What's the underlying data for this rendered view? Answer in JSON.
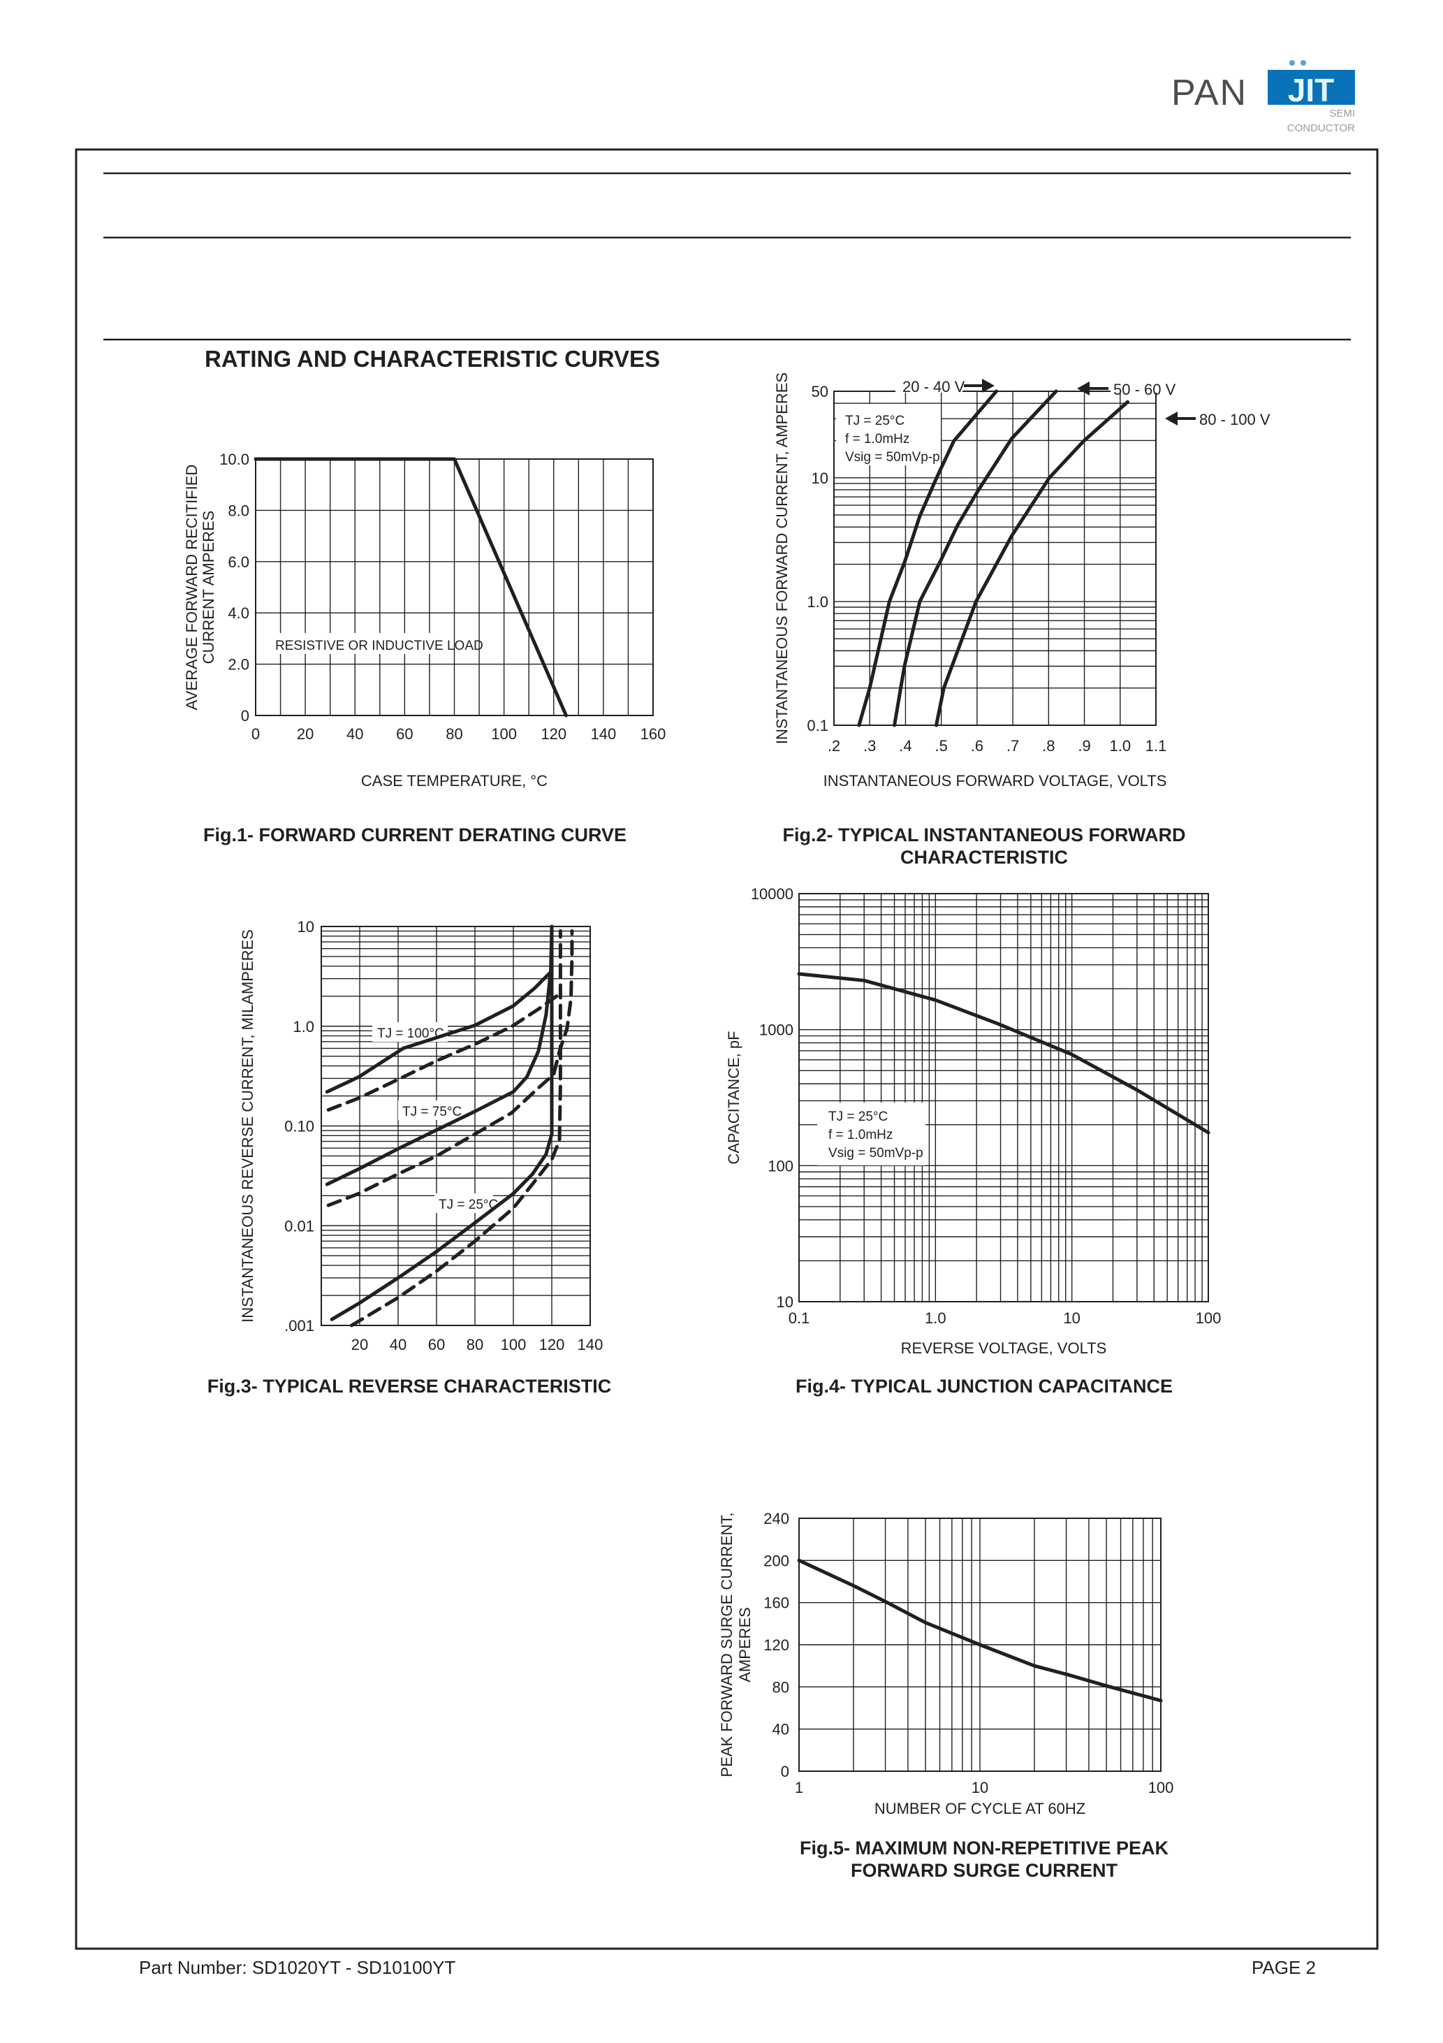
{
  "logo": {
    "brand_left": "PAN",
    "brand_right": "JIT",
    "sub1": "SEMI",
    "sub2": "CONDUCTOR",
    "colors": {
      "gray": "#4d4d4f",
      "blue": "#0a72b8"
    }
  },
  "page": {
    "section_title": "RATING AND CHARACTERISTIC CURVES"
  },
  "footer": {
    "part_number": "Part Number: SD1020YT - SD10100YT",
    "page": "PAGE  2"
  },
  "chart_data": [
    {
      "type": "line",
      "caption": [
        "Fig.1- FORWARD CURRENT DERATING CURVE"
      ],
      "xlabel": [
        "CASE TEMPERATURE, °C"
      ],
      "ylabel": [
        "AVERAGE FORWARD RECITIFIED",
        "CURRENT AMPERES"
      ],
      "xscale": "linear",
      "yscale": "linear",
      "xlim": [
        0,
        160
      ],
      "ylim": [
        0,
        10
      ],
      "grid": true,
      "xticks": [
        {
          "v": 0,
          "label": "0"
        },
        {
          "v": 20,
          "label": "20"
        },
        {
          "v": 40,
          "label": "40"
        },
        {
          "v": 60,
          "label": "60"
        },
        {
          "v": 80,
          "label": "80"
        },
        {
          "v": 100,
          "label": "100"
        },
        {
          "v": 120,
          "label": "120"
        },
        {
          "v": 140,
          "label": "140"
        },
        {
          "v": 160,
          "label": "160"
        }
      ],
      "yticks": [
        {
          "v": 0,
          "label": "0"
        },
        {
          "v": 2,
          "label": "2.0"
        },
        {
          "v": 4,
          "label": "4.0"
        },
        {
          "v": 6,
          "label": "6.0"
        },
        {
          "v": 8,
          "label": "8.0"
        },
        {
          "v": 10,
          "label": "10.0"
        }
      ],
      "series": [
        {
          "style": "solid",
          "points": [
            [
              0,
              10
            ],
            [
              80,
              10
            ],
            [
              125,
              0
            ]
          ]
        }
      ],
      "annotations": [
        "RESISTIVE OR INDUCTIVE LOAD"
      ]
    },
    {
      "type": "line",
      "caption": [
        "Fig.2- TYPICAL INSTANTANEOUS FORWARD",
        "CHARACTERISTIC"
      ],
      "xlabel": [
        "INSTANTANEOUS FORWARD VOLTAGE, VOLTS"
      ],
      "ylabel": [
        "INSTANTANEOUS FORWARD CURRENT, AMPERES"
      ],
      "xscale": "linear",
      "yscale": "log",
      "xlim": [
        0.2,
        1.1
      ],
      "ylim": [
        0.1,
        50
      ],
      "grid": true,
      "xticks": [
        {
          "v": 0.2,
          "label": ".2"
        },
        {
          "v": 0.3,
          "label": ".3"
        },
        {
          "v": 0.4,
          "label": ".4"
        },
        {
          "v": 0.5,
          "label": ".5"
        },
        {
          "v": 0.6,
          "label": ".6"
        },
        {
          "v": 0.7,
          "label": ".7"
        },
        {
          "v": 0.8,
          "label": ".8"
        },
        {
          "v": 0.9,
          "label": ".9"
        },
        {
          "v": 1.0,
          "label": "1.0"
        },
        {
          "v": 1.1,
          "label": "1.1"
        }
      ],
      "yticks": [
        {
          "v": 0.1,
          "label": "0.1"
        },
        {
          "v": 1,
          "label": "1.0"
        },
        {
          "v": 10,
          "label": "10"
        },
        {
          "v": 50,
          "label": "50"
        }
      ],
      "series": [
        {
          "name": "20 - 40 V",
          "style": "solid",
          "points": [
            [
              0.27,
              0.1
            ],
            [
              0.3,
              0.2
            ],
            [
              0.355,
              1.0
            ],
            [
              0.398,
              2.1
            ],
            [
              0.44,
              4.9
            ],
            [
              0.487,
              10
            ],
            [
              0.535,
              19.8
            ],
            [
              0.654,
              50
            ]
          ]
        },
        {
          "name": "50 - 60 V",
          "style": "solid",
          "points": [
            [
              0.369,
              0.1
            ],
            [
              0.397,
              0.3
            ],
            [
              0.44,
              1.0
            ],
            [
              0.497,
              2.1
            ],
            [
              0.545,
              4.1
            ],
            [
              0.602,
              7.8
            ],
            [
              0.697,
              20.8
            ],
            [
              0.821,
              50
            ]
          ]
        },
        {
          "name": "80 - 100 V",
          "style": "solid",
          "points": [
            [
              0.486,
              0.1
            ],
            [
              0.507,
              0.2
            ],
            [
              0.597,
              1.0
            ],
            [
              0.697,
              3.4
            ],
            [
              0.802,
              10
            ],
            [
              0.898,
              19.8
            ],
            [
              1.021,
              41
            ]
          ]
        }
      ],
      "annotations": [
        "TJ = 25°C",
        "f = 1.0mHz",
        "Vsig = 50mVp-p"
      ]
    },
    {
      "type": "line",
      "caption": [
        "Fig.3- TYPICAL REVERSE CHARACTERISTIC"
      ],
      "xlabel": [],
      "ylabel": [
        "INSTANTANEOUS REVERSE CURRENT, MILAMPERES"
      ],
      "xscale": "linear",
      "yscale": "log",
      "xlim": [
        0,
        140
      ],
      "ylim": [
        0.001,
        10
      ],
      "grid": true,
      "xticks": [
        {
          "v": 20,
          "label": "20"
        },
        {
          "v": 40,
          "label": "40"
        },
        {
          "v": 60,
          "label": "60"
        },
        {
          "v": 80,
          "label": "80"
        },
        {
          "v": 100,
          "label": "100"
        },
        {
          "v": 120,
          "label": "120"
        },
        {
          "v": 140,
          "label": "140"
        }
      ],
      "yticks": [
        {
          "v": 0.001,
          "label": ".001"
        },
        {
          "v": 0.01,
          "label": "0.01"
        },
        {
          "v": 0.1,
          "label": "0.10"
        },
        {
          "v": 1,
          "label": "1.0"
        },
        {
          "v": 10,
          "label": "10"
        }
      ],
      "series": [
        {
          "style": "solid",
          "points": [
            [
              3,
              0.22
            ],
            [
              19.5,
              0.31
            ],
            [
              42.7,
              0.6
            ],
            [
              80,
              1.02
            ],
            [
              100,
              1.6
            ],
            [
              111,
              2.4
            ],
            [
              119.5,
              3.5
            ]
          ]
        },
        {
          "style": "dashed",
          "points": [
            [
              3.7,
              0.145
            ],
            [
              19.5,
              0.19
            ],
            [
              42.7,
              0.31
            ],
            [
              60,
              0.45
            ],
            [
              80,
              0.66
            ],
            [
              99,
              0.99
            ],
            [
              113.4,
              1.5
            ],
            [
              124,
              2.1
            ]
          ]
        },
        {
          "style": "solid",
          "points": [
            [
              3,
              0.026
            ],
            [
              19.5,
              0.037
            ],
            [
              40,
              0.059
            ],
            [
              60,
              0.091
            ],
            [
              80,
              0.14
            ],
            [
              100,
              0.22
            ],
            [
              107,
              0.31
            ],
            [
              113,
              0.56
            ],
            [
              117,
              1.3
            ],
            [
              119.5,
              3.6
            ],
            [
              120,
              10
            ]
          ]
        },
        {
          "style": "dashed",
          "points": [
            [
              3.7,
              0.016
            ],
            [
              19.5,
              0.021
            ],
            [
              40,
              0.033
            ],
            [
              60,
              0.05
            ],
            [
              80,
              0.083
            ],
            [
              99,
              0.135
            ],
            [
              113,
              0.24
            ],
            [
              121,
              0.33
            ],
            [
              124,
              0.56
            ],
            [
              128,
              0.96
            ],
            [
              130,
              1.9
            ],
            [
              130.5,
              5
            ],
            [
              130.5,
              9
            ]
          ]
        },
        {
          "style": "solid",
          "points": [
            [
              5.5,
              0.00115
            ],
            [
              19.5,
              0.00166
            ],
            [
              40,
              0.003
            ],
            [
              60,
              0.0055
            ],
            [
              80,
              0.0107
            ],
            [
              100,
              0.021
            ],
            [
              110,
              0.033
            ],
            [
              117,
              0.052
            ],
            [
              120,
              0.083
            ],
            [
              120,
              10
            ]
          ]
        },
        {
          "style": "dashed",
          "points": [
            [
              15.8,
              0.001
            ],
            [
              40,
              0.0019
            ],
            [
              60,
              0.0035
            ],
            [
              80,
              0.007
            ],
            [
              100,
              0.015
            ],
            [
              113,
              0.031
            ],
            [
              120,
              0.046
            ],
            [
              124,
              0.072
            ],
            [
              124.5,
              0.26
            ],
            [
              124.5,
              1.9
            ],
            [
              124.5,
              9
            ]
          ]
        }
      ],
      "annotations": [
        "TJ = 100°C",
        "TJ = 75°C",
        "TJ = 25°C"
      ]
    },
    {
      "type": "line",
      "caption": [
        "Fig.4- TYPICAL JUNCTION CAPACITANCE"
      ],
      "xlabel": [
        "REVERSE VOLTAGE, VOLTS"
      ],
      "ylabel": [
        "CAPACITANCE, pF"
      ],
      "xscale": "log",
      "yscale": "log",
      "xlim": [
        0.1,
        100
      ],
      "ylim": [
        10,
        10000
      ],
      "grid": true,
      "xticks": [
        {
          "v": 0.1,
          "label": "0.1"
        },
        {
          "v": 1,
          "label": "1.0"
        },
        {
          "v": 10,
          "label": "10"
        },
        {
          "v": 100,
          "label": "100"
        }
      ],
      "yticks": [
        {
          "v": 10,
          "label": "10"
        },
        {
          "v": 100,
          "label": "100"
        },
        {
          "v": 1000,
          "label": "1000"
        },
        {
          "v": 10000,
          "label": "10000"
        }
      ],
      "series": [
        {
          "style": "solid",
          "points": [
            [
              0.1,
              2570
            ],
            [
              0.3,
              2300
            ],
            [
              1.0,
              1650
            ],
            [
              2.9,
              1100
            ],
            [
              9.9,
              660
            ],
            [
              30,
              360
            ],
            [
              100,
              175
            ]
          ]
        }
      ],
      "annotations": [
        "TJ = 25°C",
        "f = 1.0mHz",
        "Vsig = 50mVp-p"
      ]
    },
    {
      "type": "line",
      "caption": [
        "Fig.5- MAXIMUM NON-REPETITIVE PEAK",
        "FORWARD SURGE CURRENT"
      ],
      "xlabel": [
        "NUMBER OF CYCLE AT 60HZ"
      ],
      "ylabel": [
        "PEAK FORWARD SURGE CURRENT,",
        "AMPERES"
      ],
      "xscale": "log",
      "yscale": "linear",
      "xlim": [
        1,
        100
      ],
      "ylim": [
        0,
        240
      ],
      "grid": true,
      "xticks": [
        {
          "v": 1,
          "label": "1"
        },
        {
          "v": 10,
          "label": "10"
        },
        {
          "v": 100,
          "label": "100"
        }
      ],
      "yticks": [
        {
          "v": 0,
          "label": "0"
        },
        {
          "v": 40,
          "label": "40"
        },
        {
          "v": 80,
          "label": "80"
        },
        {
          "v": 120,
          "label": "120"
        },
        {
          "v": 160,
          "label": "160"
        },
        {
          "v": 200,
          "label": "200"
        },
        {
          "v": 240,
          "label": "240"
        }
      ],
      "series": [
        {
          "style": "solid",
          "points": [
            [
              1,
              200
            ],
            [
              2,
              176
            ],
            [
              3,
              161
            ],
            [
              5,
              141
            ],
            [
              10,
              120
            ],
            [
              20,
              100
            ],
            [
              30,
              92
            ],
            [
              50,
              81
            ],
            [
              100,
              67
            ]
          ]
        }
      ],
      "annotations": []
    }
  ]
}
